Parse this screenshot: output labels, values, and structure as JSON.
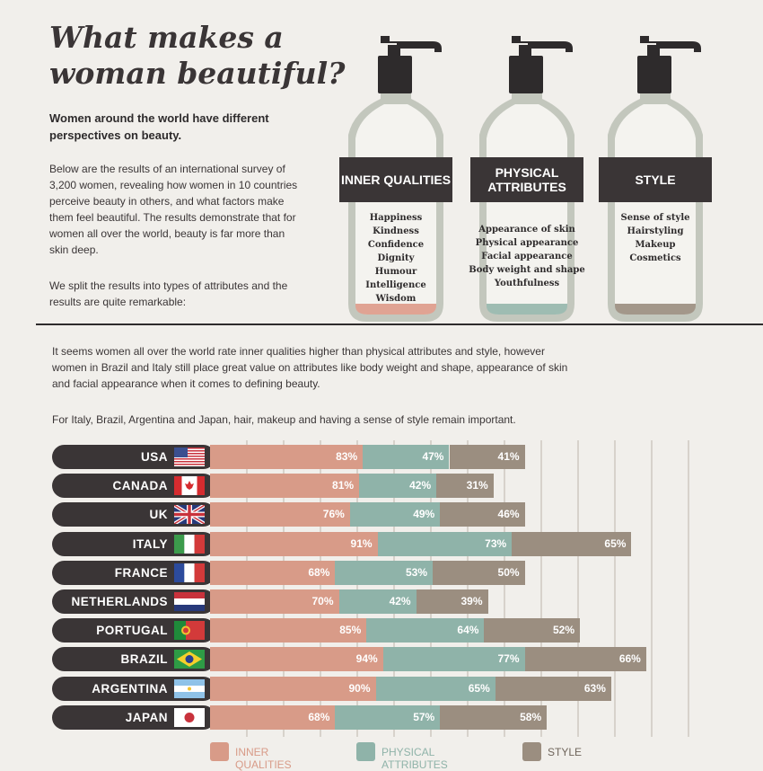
{
  "header": {
    "title": "What makes a woman beautiful?",
    "subtitle": "Women around the world have different perspectives on beauty.",
    "para1": "Below are the results of an international survey of 3,200 women, revealing how women in 10 countries perceive beauty in others, and what factors make them feel beautiful. The results demonstrate that for women all over the world, beauty is far more than skin deep.",
    "para2": "We split the results into types of attributes and the results are quite remarkable:"
  },
  "bottles": [
    {
      "label": "INNER QUALITIES",
      "items": [
        "Happiness",
        "Kindness",
        "Confidence",
        "Dignity",
        "Humour",
        "Intelligence",
        "Wisdom"
      ],
      "liquid": "#e0a393"
    },
    {
      "label": "PHYSICAL ATTRIBUTES",
      "items": [
        "Appearance of skin",
        "Physical appearance",
        "Facial appearance",
        "Body weight and shape",
        "Youthfulness"
      ],
      "liquid": "#9ebcb2"
    },
    {
      "label": "STYLE",
      "items": [
        "Sense of style",
        "Hairstyling",
        "Makeup",
        "Cosmetics"
      ],
      "liquid": "#a3978a"
    }
  ],
  "middle": {
    "para1": "It seems women all over the world rate inner qualities higher than physical attributes and style, however women in Brazil and Italy still place great value on attributes like body weight and shape, appearance of skin and facial appearance when it comes to defining beauty.",
    "para2": "For Italy, Brazil, Argentina and Japan, hair, makeup and having a sense of style remain important."
  },
  "colors": {
    "inner": "#d89b88",
    "physical": "#8fb3a9",
    "style": "#9b8e80",
    "pill": "#3a3536"
  },
  "legend": [
    "INNER QUALITIES",
    "PHYSICAL ATTRIBUTES",
    "STYLE"
  ],
  "chart_data": {
    "type": "bar",
    "stacked": true,
    "orientation": "horizontal",
    "categories": [
      "USA",
      "CANADA",
      "UK",
      "ITALY",
      "FRANCE",
      "NETHERLANDS",
      "PORTUGAL",
      "BRAZIL",
      "ARGENTINA",
      "JAPAN"
    ],
    "series": [
      {
        "name": "INNER QUALITIES",
        "values": [
          83,
          81,
          76,
          91,
          68,
          70,
          85,
          94,
          90,
          68
        ]
      },
      {
        "name": "PHYSICAL ATTRIBUTES",
        "values": [
          47,
          42,
          49,
          73,
          53,
          42,
          64,
          77,
          65,
          57
        ]
      },
      {
        "name": "STYLE",
        "values": [
          41,
          31,
          46,
          65,
          50,
          39,
          52,
          66,
          63,
          58
        ]
      }
    ],
    "value_suffix": "%",
    "legend_position": "bottom",
    "grid": true
  }
}
